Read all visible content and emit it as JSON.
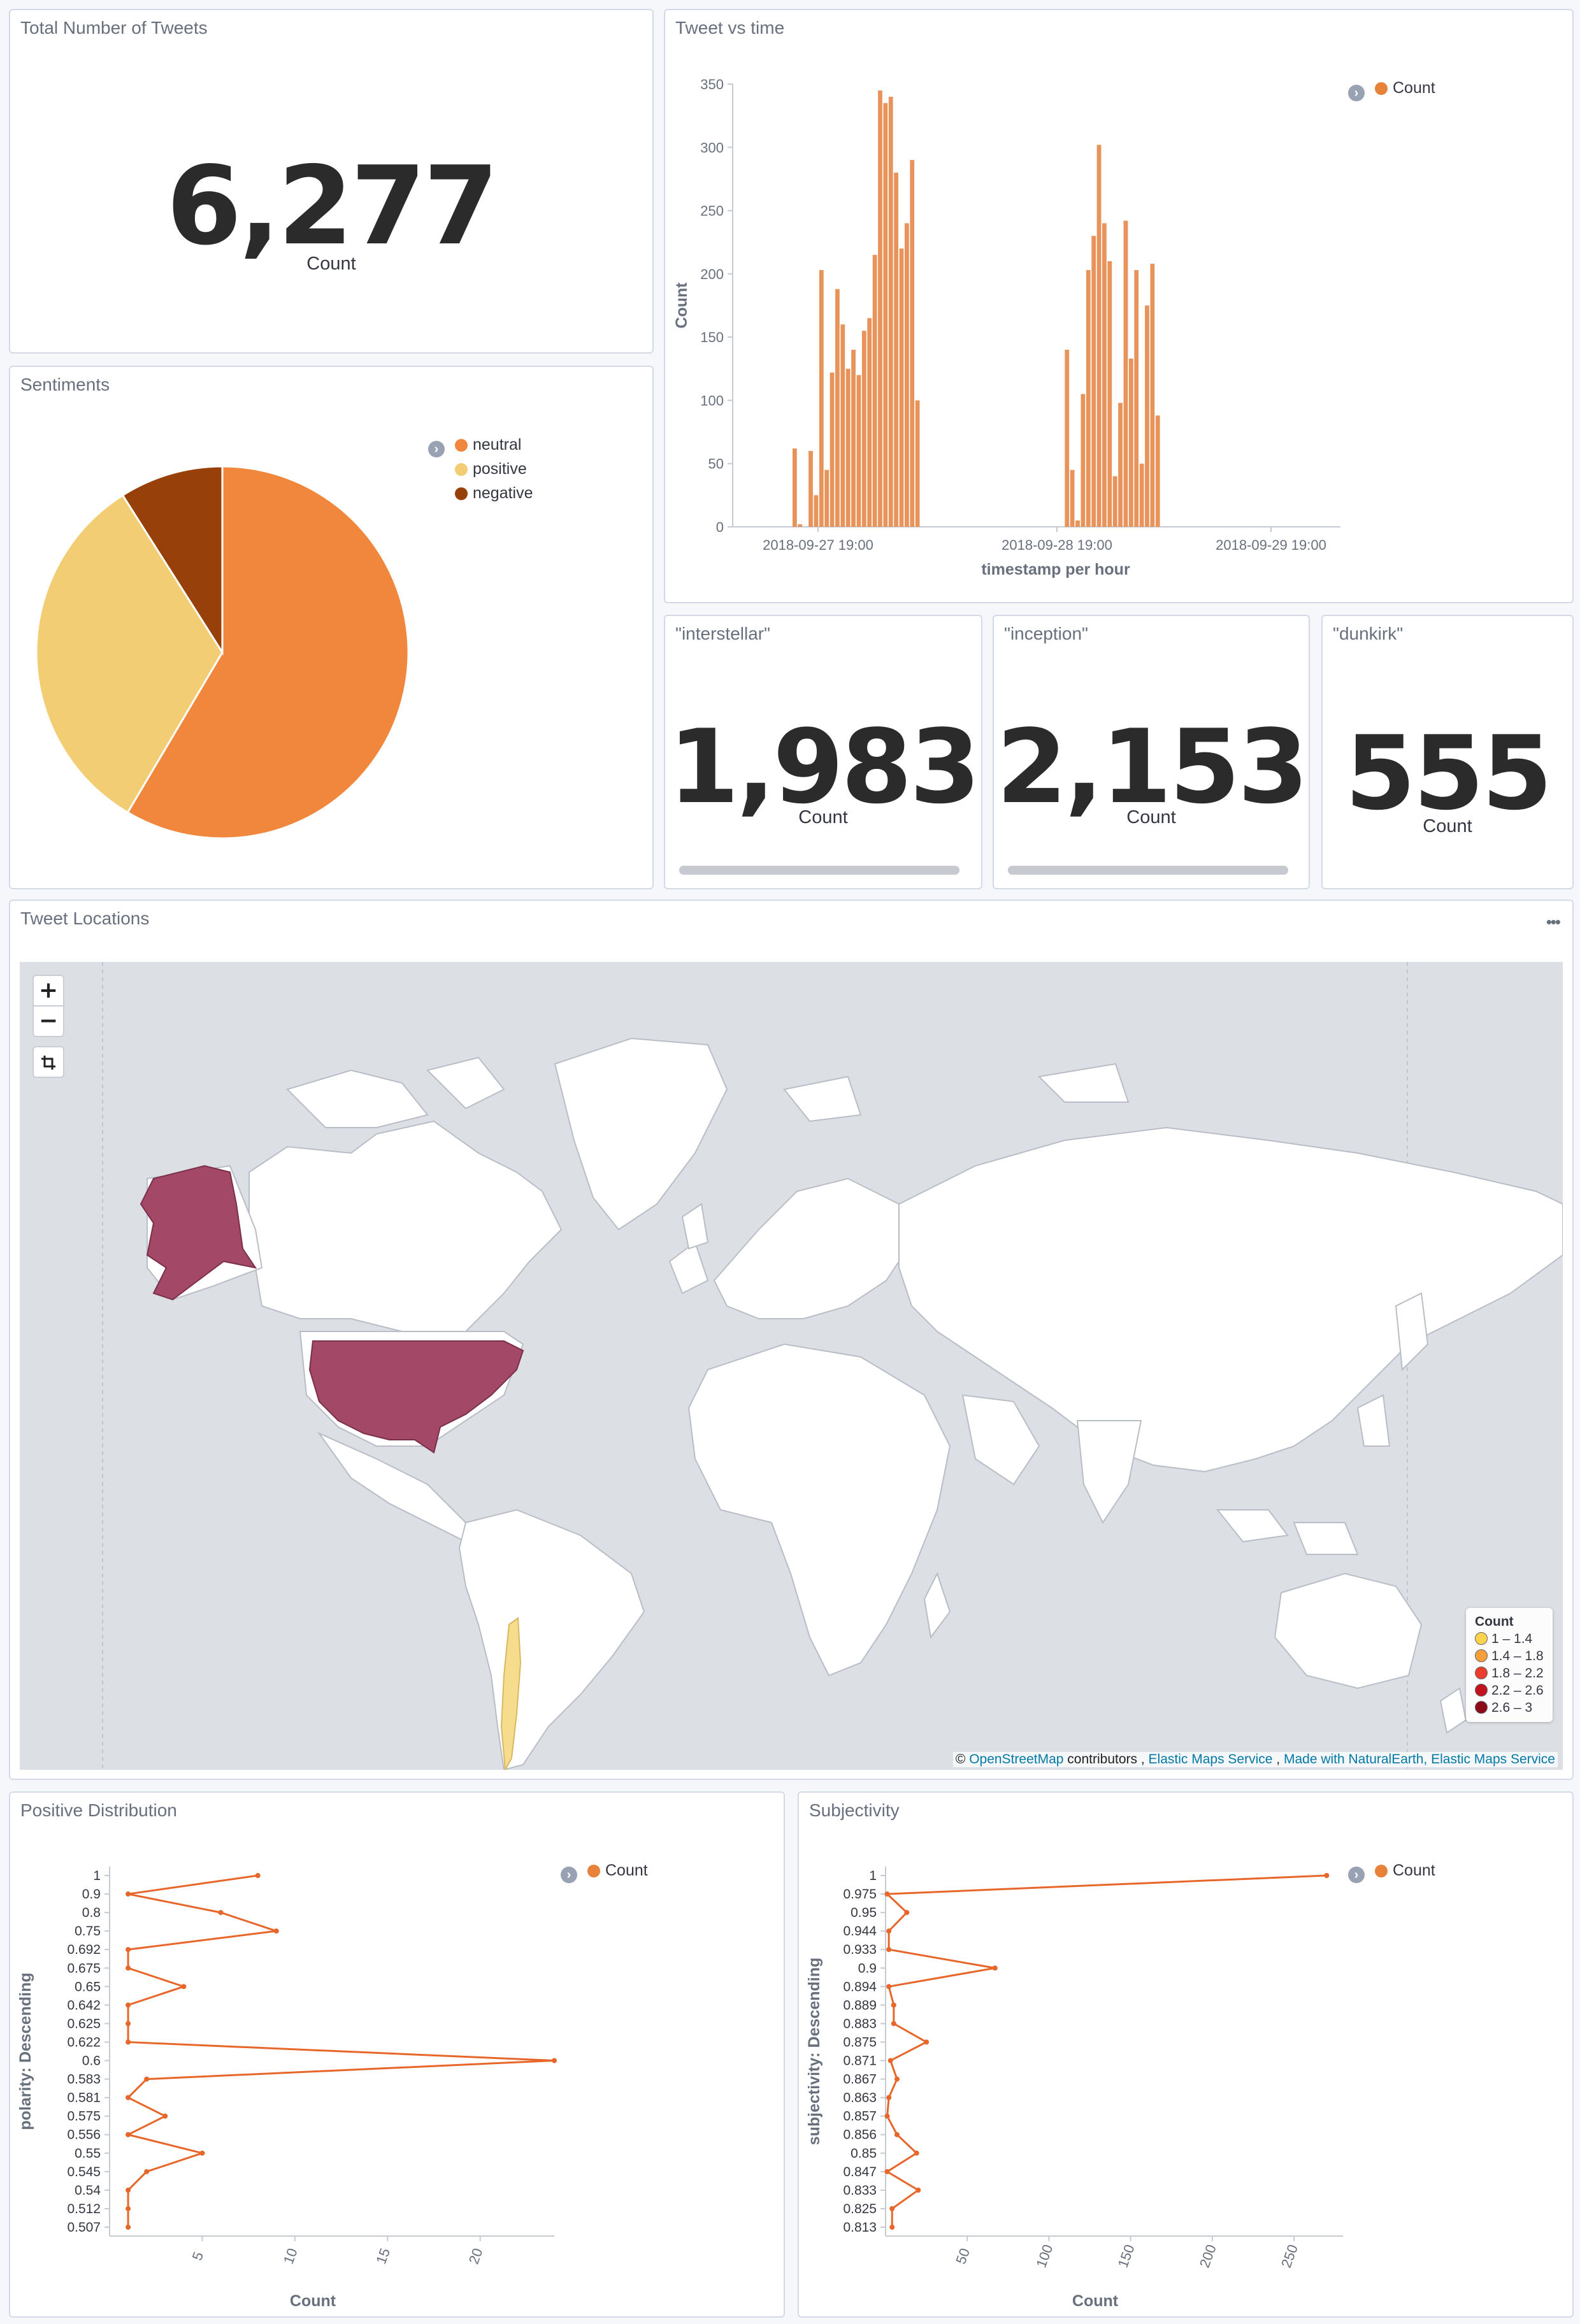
{
  "total_tweets": {
    "title": "Total Number of Tweets",
    "value": "6,277",
    "label": "Count"
  },
  "sentiments": {
    "title": "Sentiments",
    "legend": [
      "neutral",
      "positive",
      "negative"
    ],
    "colors": [
      "#f0873c",
      "#f2cd74",
      "#974009"
    ]
  },
  "tweet_vs_time": {
    "title": "Tweet vs time",
    "legend": "Count"
  },
  "keywords": [
    {
      "title": "\"interstellar\"",
      "value": "1,983",
      "label": "Count"
    },
    {
      "title": "\"inception\"",
      "value": "2,153",
      "label": "Count"
    },
    {
      "title": "\"dunkirk\"",
      "value": "555",
      "label": "Count"
    }
  ],
  "map": {
    "title": "Tweet Locations",
    "options_icon": "ellipsis-icon",
    "zoom_in": "+",
    "zoom_out": "−",
    "fit_icon": "crop-icon",
    "legend": {
      "title": "Count",
      "ranges": [
        "1 – 1.4",
        "1.4 – 1.8",
        "1.8 – 2.2",
        "2.2 – 2.6",
        "2.6 – 3"
      ],
      "colors": [
        "#fcd34d",
        "#f59e3a",
        "#ec3c2c",
        "#c0131d",
        "#8b0a16"
      ]
    },
    "attribution": {
      "prefix": "©",
      "osm": "OpenStreetMap",
      "contributors": "contributors ,",
      "ems": "Elastic Maps Service",
      "sep": ",",
      "natural": "Made with NaturalEarth,",
      "ems2": "Elastic Maps Service"
    },
    "highlight_color": "#a34867",
    "chile_color": "#f6dc8d"
  },
  "positive_dist": {
    "title": "Positive Distribution",
    "legend": "Count"
  },
  "subjectivity": {
    "title": "Subjectivity",
    "legend": "Count"
  },
  "chart_data": [
    {
      "type": "pie",
      "title": "Sentiments",
      "categories": [
        "neutral",
        "positive",
        "negative"
      ],
      "values": [
        58.5,
        32.5,
        9
      ]
    },
    {
      "type": "bar",
      "title": "Tweet vs time",
      "xlabel": "timestamp per hour",
      "ylabel": "Count",
      "ylim": [
        0,
        350
      ],
      "yticks": [
        0,
        50,
        100,
        150,
        200,
        250,
        300,
        350
      ],
      "xticks": [
        "2018-09-27 19:00",
        "2018-09-28 19:00",
        "2018-09-29 19:00"
      ],
      "x_start": "2018-09-27 13:00",
      "series": [
        {
          "name": "Count",
          "values": [
            62,
            2,
            0,
            60,
            25,
            203,
            45,
            122,
            188,
            160,
            125,
            140,
            120,
            155,
            165,
            215,
            345,
            335,
            340,
            280,
            220,
            240,
            290,
            100,
            0,
            0,
            0,
            0,
            0,
            0,
            0,
            0,
            0,
            0,
            0,
            0,
            0,
            0,
            0,
            0,
            0,
            0,
            0,
            0,
            0,
            0,
            0,
            0,
            0,
            0,
            0,
            140,
            45,
            5,
            105,
            203,
            230,
            302,
            240,
            210,
            40,
            98,
            242,
            133,
            203,
            50,
            175,
            208,
            88
          ]
        }
      ],
      "grid": false,
      "legend": "top-right"
    },
    {
      "type": "line",
      "title": "Positive Distribution",
      "xlabel": "Count",
      "ylabel": "polarity: Descending",
      "categories": [
        "1",
        "0.9",
        "0.8",
        "0.75",
        "0.692",
        "0.675",
        "0.65",
        "0.642",
        "0.625",
        "0.622",
        "0.6",
        "0.583",
        "0.581",
        "0.575",
        "0.556",
        "0.55",
        "0.545",
        "0.54",
        "0.512",
        "0.507"
      ],
      "values": [
        8,
        1,
        6,
        9,
        1,
        1,
        4,
        1,
        1,
        1,
        24,
        2,
        1,
        3,
        1,
        5,
        2,
        1,
        1,
        1
      ],
      "xlim": [
        0,
        24
      ],
      "xticks": [
        5,
        10,
        15,
        20
      ],
      "legend": "top-right"
    },
    {
      "type": "line",
      "title": "Subjectivity",
      "xlabel": "Count",
      "ylabel": "subjectivity: Descending",
      "categories": [
        "1",
        "0.975",
        "0.95",
        "0.944",
        "0.933",
        "0.9",
        "0.894",
        "0.889",
        "0.883",
        "0.875",
        "0.871",
        "0.867",
        "0.863",
        "0.857",
        "0.856",
        "0.85",
        "0.847",
        "0.833",
        "0.825",
        "0.813"
      ],
      "values": [
        270,
        1,
        13,
        2,
        2,
        67,
        2,
        5,
        5,
        25,
        3,
        7,
        2,
        1,
        7,
        19,
        1,
        20,
        4,
        4
      ],
      "xlim": [
        0,
        280
      ],
      "xticks": [
        50,
        100,
        150,
        200,
        250
      ],
      "legend": "top-right"
    }
  ]
}
